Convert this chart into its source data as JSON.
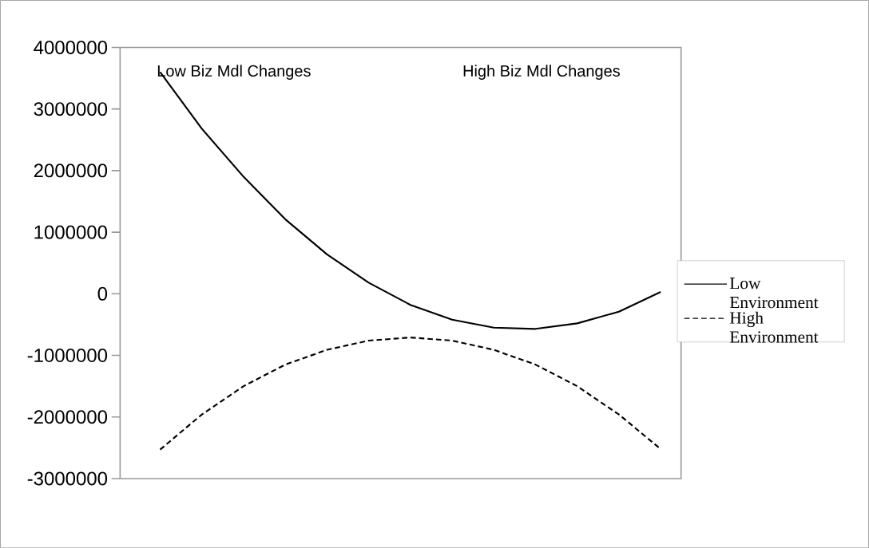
{
  "chart_data": {
    "type": "line",
    "categories": [
      null,
      null,
      null,
      null,
      null,
      null,
      null,
      null,
      null,
      null,
      null,
      null,
      null
    ],
    "series": [
      {
        "name": "Low Environment",
        "color": "#000000",
        "line_style": "solid",
        "values": [
          3600000,
          2680000,
          1900000,
          1210000,
          640000,
          180000,
          -180000,
          -420000,
          -550000,
          -570000,
          -480000,
          -290000,
          30000
        ]
      },
      {
        "name": "High Environment",
        "color": "#000000",
        "line_style": "dashed",
        "values": [
          -2530000,
          -1960000,
          -1500000,
          -1150000,
          -910000,
          -760000,
          -710000,
          -760000,
          -910000,
          -1150000,
          -1500000,
          -1960000,
          -2520000
        ]
      }
    ],
    "ylim": [
      -3000000,
      4000000
    ],
    "yticks": [
      -3000000,
      -2000000,
      -1000000,
      0,
      1000000,
      2000000,
      3000000,
      4000000
    ],
    "annotations": [
      "Low Biz Mdl Changes",
      "High Biz Mdl Changes"
    ],
    "legend": "right"
  }
}
